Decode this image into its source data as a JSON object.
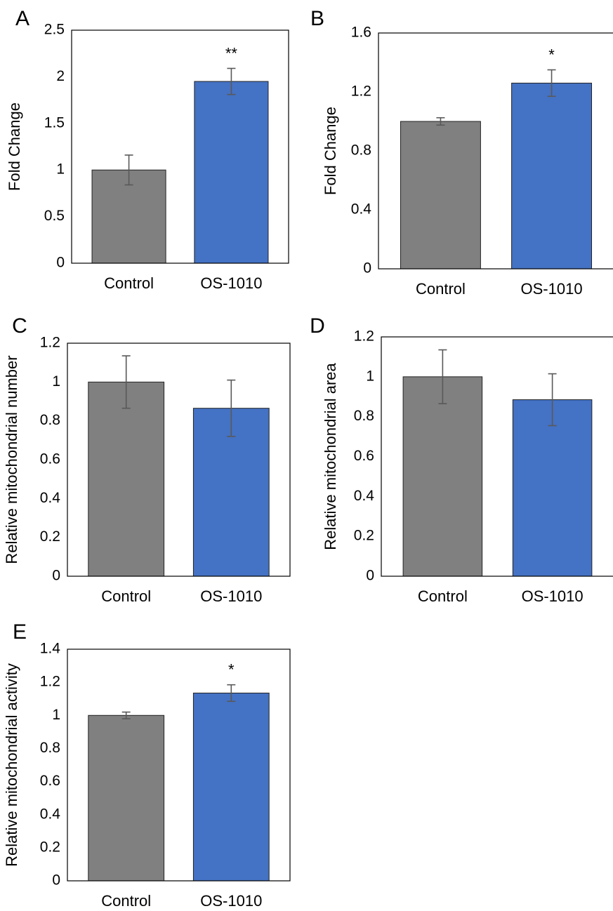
{
  "colors": {
    "control": "#808080",
    "treatment": "#4472C4",
    "error_bar": "#595959",
    "frame": "#000000"
  },
  "chart_data": [
    {
      "panel": "A",
      "type": "bar",
      "ylabel": "Fold Change",
      "categories": [
        "Control",
        "OS-1010"
      ],
      "values": [
        1.0,
        1.95
      ],
      "errors": [
        0.16,
        0.14
      ],
      "significance": [
        "",
        "**"
      ],
      "ylim": [
        0,
        2.5
      ],
      "yticks": [
        "0",
        "0.5",
        "1",
        "1.5",
        "2",
        "2.5"
      ]
    },
    {
      "panel": "B",
      "type": "bar",
      "ylabel": "Fold Change",
      "categories": [
        "Control",
        "OS-1010"
      ],
      "values": [
        1.0,
        1.26
      ],
      "errors": [
        0.025,
        0.09
      ],
      "significance": [
        "",
        "*"
      ],
      "ylim": [
        0,
        1.6
      ],
      "yticks": [
        "0",
        "0.4",
        "0.8",
        "1.2",
        "1.6"
      ]
    },
    {
      "panel": "C",
      "type": "bar",
      "ylabel": "Relative mitochondrial number",
      "categories": [
        "Control",
        "OS-1010"
      ],
      "values": [
        1.0,
        0.865
      ],
      "errors": [
        0.135,
        0.145
      ],
      "significance": [
        "",
        ""
      ],
      "ylim": [
        0,
        1.2
      ],
      "yticks": [
        "0",
        "0.2",
        "0.4",
        "0.6",
        "0.8",
        "1",
        "1.2"
      ]
    },
    {
      "panel": "D",
      "type": "bar",
      "ylabel": "Relative mitochondrial area",
      "categories": [
        "Control",
        "OS-1010"
      ],
      "values": [
        1.0,
        0.885
      ],
      "errors": [
        0.135,
        0.13
      ],
      "significance": [
        "",
        ""
      ],
      "ylim": [
        0,
        1.2
      ],
      "yticks": [
        "0",
        "0.2",
        "0.4",
        "0.6",
        "0.8",
        "1",
        "1.2"
      ]
    },
    {
      "panel": "E",
      "type": "bar",
      "ylabel": "Relative mitochondrial activity",
      "categories": [
        "Control",
        "OS-1010"
      ],
      "values": [
        1.0,
        1.135
      ],
      "errors": [
        0.02,
        0.05
      ],
      "significance": [
        "",
        "*"
      ],
      "ylim": [
        0,
        1.4
      ],
      "yticks": [
        "0",
        "0.2",
        "0.4",
        "0.6",
        "0.8",
        "1",
        "1.2",
        "1.4"
      ]
    }
  ]
}
